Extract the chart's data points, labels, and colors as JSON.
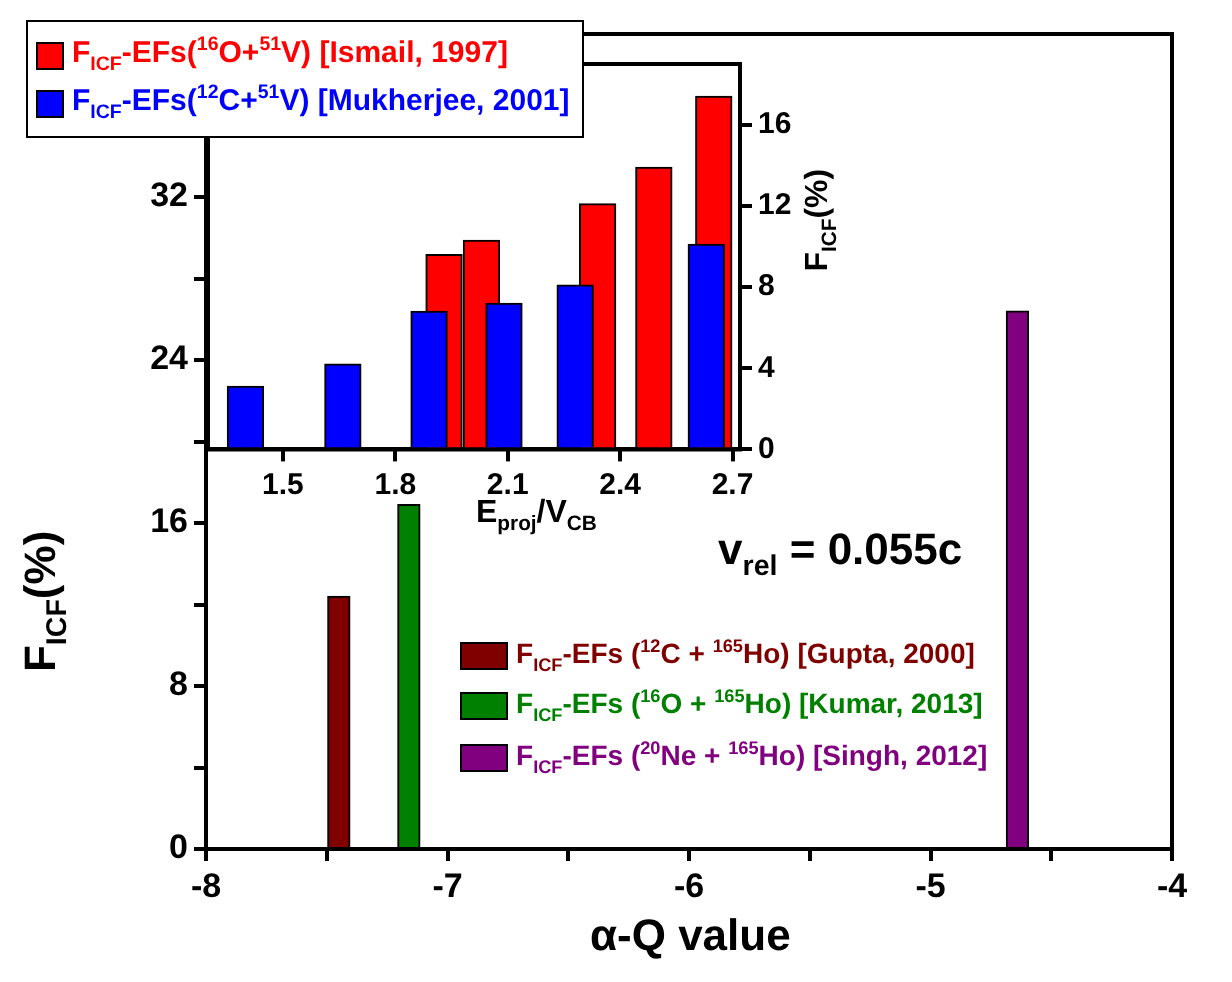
{
  "chart_data": [
    {
      "type": "bar",
      "xlabel": "α-Q value",
      "ylabel": "F$_{ICF}$(%)",
      "xlim": [
        -8,
        -4
      ],
      "xticks": [
        -8,
        {
          "value": -7.5,
          "label": null
        },
        -7,
        {
          "value": -6.5,
          "label": null
        },
        -6,
        {
          "value": -5.5,
          "label": null
        },
        -5,
        {
          "value": -4.5,
          "label": null
        },
        -4
      ],
      "ylim": [
        0,
        40
      ],
      "yticks": [
        0,
        {
          "value": 4,
          "label": null
        },
        8,
        {
          "value": 12,
          "label": null
        },
        16,
        {
          "value": 20,
          "label": null
        },
        24,
        {
          "value": 28,
          "label": null
        },
        32
      ],
      "legend": "bottom",
      "annotations": [
        "v$_{rel}$ = 0.055c"
      ],
      "series": [
        {
          "name": "F$_{ICF}$-EFs ($^{12}$C + $^{165}$Ho) [Gupta, 2000]",
          "color": "#800000",
          "x": [
            -7.45
          ],
          "values": [
            12.4
          ]
        },
        {
          "name": "F$_{ICF}$-EFs ($^{16}$O + $^{165}$Ho) [Kumar, 2013]",
          "color": "#008000",
          "x": [
            -7.16
          ],
          "values": [
            16.9
          ]
        },
        {
          "name": "F$_{ICF}$-EFs ($^{20}$Ne + $^{165}$Ho) [Singh, 2012]",
          "color": "#800080",
          "x": [
            -4.64
          ],
          "values": [
            26.4
          ]
        }
      ]
    },
    {
      "type": "bar",
      "xlabel": "E$_{proj}$/V$_{CB}$",
      "y2label": "F$_{ICF}$(%)",
      "xlim": [
        1.3,
        2.72
      ],
      "xticks": [
        1.5,
        1.8,
        2.1,
        2.4,
        2.7
      ],
      "y2lim": [
        0,
        19
      ],
      "y2ticks": [
        0,
        4,
        8,
        12,
        16
      ],
      "legend": "top left",
      "series": [
        {
          "name": "F$_{ICF}$-EFs($^{16}$O+$^{51}$V) [Ismail, 1997]",
          "color": "#ff0000",
          "axis": "y2",
          "x": [
            1.93,
            2.03,
            2.34,
            2.49,
            2.65
          ],
          "values": [
            9.6,
            10.3,
            12.1,
            13.9,
            17.4
          ]
        },
        {
          "name": "F$_{ICF}$-EFs($^{12}$C+$^{51}$V) [Mukherjee, 2001]",
          "color": "#0000ff",
          "axis": "y2",
          "x": [
            1.4,
            1.66,
            1.89,
            2.09,
            2.28,
            2.63
          ],
          "values": [
            3.1,
            4.2,
            6.8,
            7.2,
            8.1,
            10.1
          ]
        }
      ]
    }
  ]
}
